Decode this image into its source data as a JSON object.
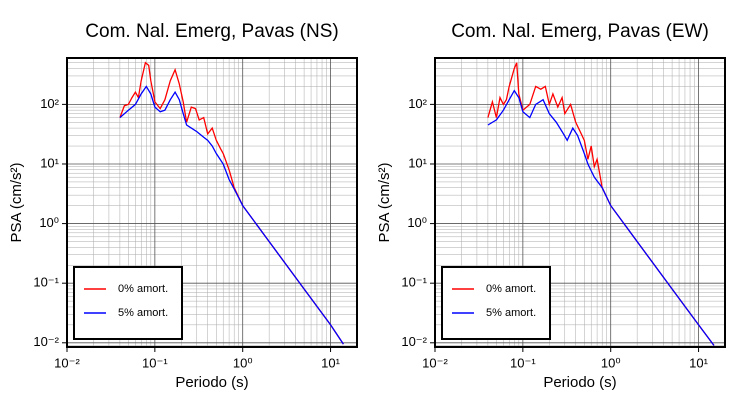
{
  "chart_data": [
    {
      "type": "line",
      "title": "Com. Nal. Emerg, Pavas (NS)",
      "xlabel": "Periodo (s)",
      "ylabel": "PSA (cm/s²)",
      "xscale": "log",
      "yscale": "log",
      "grid": true,
      "minor_grid": true,
      "legend": "lower left",
      "xlim": [
        0.01,
        20
      ],
      "ylim": [
        0.0085,
        600
      ],
      "xticks": [
        {
          "value": 0.01,
          "label": "10⁻²"
        },
        {
          "value": 0.1,
          "label": "10⁻¹"
        },
        {
          "value": 1,
          "label": "10⁰"
        },
        {
          "value": 10,
          "label": "10¹"
        }
      ],
      "yticks": [
        {
          "value": 0.01,
          "label": "10⁻²"
        },
        {
          "value": 0.1,
          "label": "10⁻¹"
        },
        {
          "value": 1,
          "label": "10⁰"
        },
        {
          "value": 10,
          "label": "10¹"
        },
        {
          "value": 100,
          "label": "10²"
        }
      ],
      "series": [
        {
          "name": "0% amort.",
          "color": "#ff0000",
          "x": [
            0.04,
            0.045,
            0.05,
            0.055,
            0.06,
            0.065,
            0.07,
            0.078,
            0.085,
            0.09,
            0.1,
            0.115,
            0.13,
            0.15,
            0.17,
            0.19,
            0.21,
            0.23,
            0.26,
            0.29,
            0.32,
            0.36,
            0.4,
            0.45,
            0.5,
            0.56,
            0.6,
            0.7,
            0.8,
            1,
            2,
            5,
            10,
            14
          ],
          "values": [
            60,
            95,
            100,
            130,
            160,
            130,
            250,
            500,
            450,
            250,
            110,
            85,
            120,
            250,
            380,
            220,
            110,
            50,
            90,
            85,
            55,
            60,
            32,
            40,
            25,
            18,
            15,
            8,
            4,
            2,
            0.5,
            0.08,
            0.02,
            0.0095
          ]
        },
        {
          "name": "5% amort.",
          "color": "#0000ff",
          "x": [
            0.04,
            0.05,
            0.06,
            0.07,
            0.08,
            0.09,
            0.1,
            0.115,
            0.13,
            0.15,
            0.17,
            0.19,
            0.21,
            0.23,
            0.26,
            0.3,
            0.36,
            0.4,
            0.45,
            0.5,
            0.6,
            0.7,
            0.8,
            1,
            2,
            5,
            10,
            14
          ],
          "values": [
            60,
            80,
            100,
            150,
            200,
            150,
            90,
            75,
            80,
            120,
            160,
            120,
            70,
            45,
            40,
            35,
            28,
            25,
            20,
            15,
            10,
            5.5,
            3.8,
            2,
            0.5,
            0.08,
            0.02,
            0.0095
          ]
        }
      ]
    },
    {
      "type": "line",
      "title": "Com. Nal. Emerg, Pavas (EW)",
      "xlabel": "Periodo (s)",
      "ylabel": "PSA (cm/s²)",
      "xscale": "log",
      "yscale": "log",
      "grid": true,
      "minor_grid": true,
      "legend": "lower left",
      "xlim": [
        0.01,
        20
      ],
      "ylim": [
        0.0085,
        600
      ],
      "xticks": [
        {
          "value": 0.01,
          "label": "10⁻²"
        },
        {
          "value": 0.1,
          "label": "10⁻¹"
        },
        {
          "value": 1,
          "label": "10⁰"
        },
        {
          "value": 10,
          "label": "10¹"
        }
      ],
      "yticks": [
        {
          "value": 0.01,
          "label": "10⁻²"
        },
        {
          "value": 0.1,
          "label": "10⁻¹"
        },
        {
          "value": 1,
          "label": "10⁰"
        },
        {
          "value": 10,
          "label": "10¹"
        },
        {
          "value": 100,
          "label": "10²"
        }
      ],
      "series": [
        {
          "name": "0% amort.",
          "color": "#ff0000",
          "x": [
            0.04,
            0.045,
            0.05,
            0.055,
            0.06,
            0.065,
            0.07,
            0.08,
            0.085,
            0.09,
            0.1,
            0.12,
            0.14,
            0.16,
            0.18,
            0.2,
            0.22,
            0.25,
            0.28,
            0.3,
            0.35,
            0.4,
            0.45,
            0.5,
            0.55,
            0.6,
            0.65,
            0.7,
            0.8,
            1,
            2,
            5,
            10,
            15
          ],
          "values": [
            60,
            110,
            60,
            130,
            100,
            120,
            200,
            400,
            500,
            150,
            80,
            100,
            200,
            180,
            200,
            100,
            150,
            90,
            130,
            70,
            100,
            50,
            35,
            25,
            12,
            20,
            9,
            12,
            4,
            2,
            0.5,
            0.08,
            0.02,
            0.009
          ]
        },
        {
          "name": "5% amort.",
          "color": "#0000ff",
          "x": [
            0.04,
            0.05,
            0.06,
            0.07,
            0.08,
            0.09,
            0.1,
            0.12,
            0.14,
            0.17,
            0.2,
            0.24,
            0.28,
            0.32,
            0.37,
            0.42,
            0.5,
            0.55,
            0.65,
            0.8,
            1,
            2,
            5,
            10,
            15
          ],
          "values": [
            45,
            55,
            80,
            120,
            170,
            130,
            75,
            60,
            100,
            120,
            70,
            50,
            35,
            25,
            40,
            30,
            15,
            10,
            6,
            4,
            2,
            0.5,
            0.08,
            0.02,
            0.009
          ]
        }
      ]
    }
  ]
}
